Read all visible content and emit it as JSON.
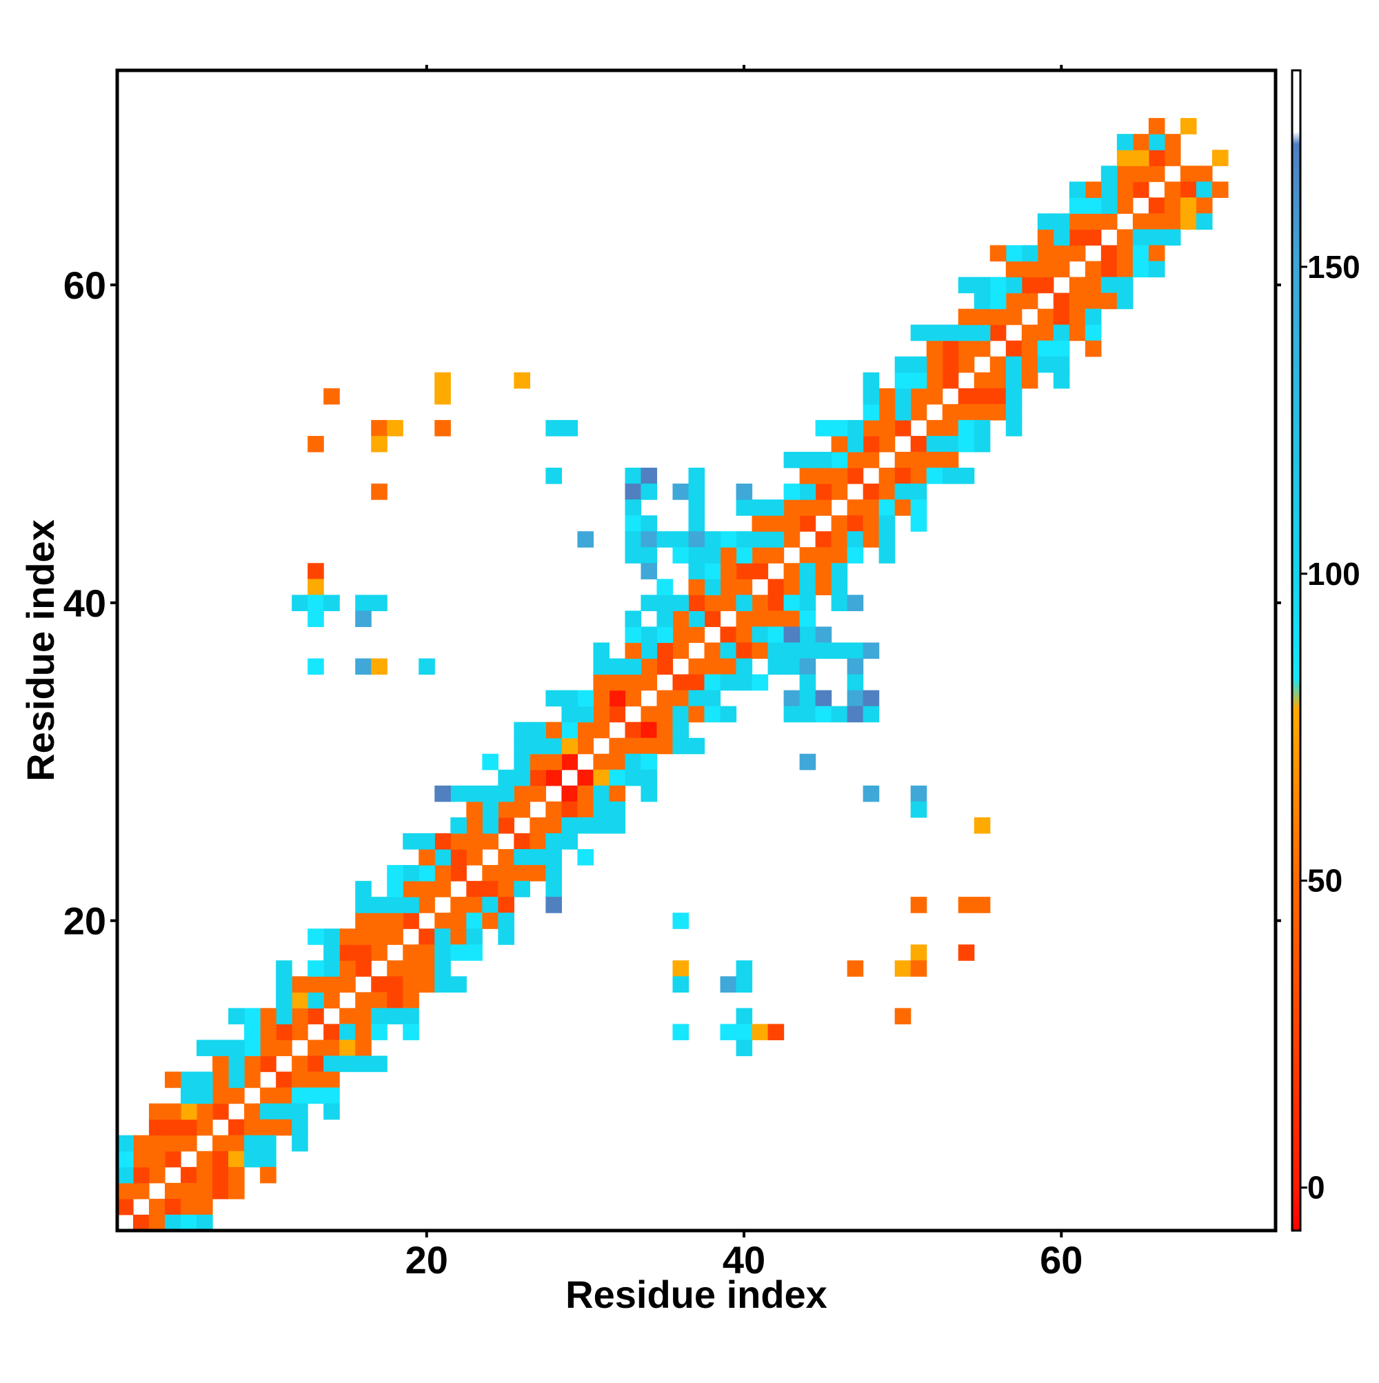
{
  "chart_data": {
    "type": "heatmap",
    "title": "",
    "xlabel": "Residue index",
    "ylabel": "Residue index",
    "xlim": [
      0.5,
      73.5
    ],
    "ylim": [
      0.5,
      73.5
    ],
    "x_ticks": [
      20,
      40,
      60
    ],
    "y_ticks": [
      20,
      40,
      60
    ],
    "colorbar": {
      "range": [
        -7,
        182
      ],
      "ticks": [
        0,
        50,
        100,
        150
      ],
      "stops": [
        {
          "value": -7,
          "color": "#ff0000"
        },
        {
          "value": 0,
          "color": "#ff1a00"
        },
        {
          "value": 25,
          "color": "#ff4400"
        },
        {
          "value": 50,
          "color": "#ff6a00"
        },
        {
          "value": 78,
          "color": "#ffaa00"
        },
        {
          "value": 83,
          "color": "#17e6ff"
        },
        {
          "value": 100,
          "color": "#15d6ee"
        },
        {
          "value": 150,
          "color": "#3fa8d8"
        },
        {
          "value": 170,
          "color": "#5080c0"
        },
        {
          "value": 172,
          "color": "#ffffff"
        },
        {
          "value": 182,
          "color": "#ffffff"
        }
      ]
    },
    "palette": {
      "R": "#ff1a00",
      "r": "#ff4400",
      "o": "#ff6a00",
      "y": "#ffaa00",
      "c": "#17e6ff",
      "t": "#15d6ee",
      "b": "#3fa8d8",
      "d": "#5080c0"
    },
    "diagonal_pattern": {
      "comment_free": true,
      "offsets": [
        {
          "d": 1,
          "start": 1,
          "cycle": "r o o r o o r o o r o o r o o r o o r o o r o o r o o R R o o r o o r o o r o o r o o r o o r o o r o o r o o r o o r o o r o o r o o"
        },
        {
          "d": 2,
          "start": 1,
          "cycle": "o r o o r o o t o o r o t o o r o o t o o r o t o o r o y o o R o o r o t o o r o t o o r o o r o t o o r o t o o r o o r o t o o r o y"
        },
        {
          "d": 3,
          "start": 1,
          "cycle": "t o o r y t o t c o t y o t r o o t o c t o o t t t o t c t o o t t c o r t o c t o o t o c t o o t c o r t o c t o o t o c t o y t"
        },
        {
          "d": 4,
          "start": 1,
          "cycle": "c o r o t t o t c o t o c t o o t c t o r t o t t t t o t c o t o t t t o c o t o t c o t o t c o c t o t o t c o t o t c o t y o o"
        }
      ],
      "extra_offsets": [
        {
          "d": 5,
          "start": 1,
          "cycle": "t . o . t . t . c . t . . t . t . c . t . . t . . t t . t . t . c . t . t . c . t . . t . c . t . t . t . . t . c . t . t . . t ."
        },
        {
          "d": 6,
          "start": 4,
          "cycle": "o . t . t . . t . c . . t . . t . . t . c . t . t . . t . t . c . . t . t . . t . c . . t . . t . . t . o . ."
        }
      ]
    },
    "offdiag_cells": [
      [
        14,
        53,
        "o"
      ],
      [
        13,
        50,
        "o"
      ],
      [
        17,
        51,
        "o"
      ],
      [
        17,
        50,
        "y"
      ],
      [
        18,
        51,
        "y"
      ],
      [
        21,
        54,
        "y"
      ],
      [
        21,
        53,
        "y"
      ],
      [
        21,
        51,
        "o"
      ],
      [
        26,
        54,
        "y"
      ],
      [
        17,
        47,
        "o"
      ],
      [
        28,
        51,
        "t"
      ],
      [
        29,
        51,
        "t"
      ],
      [
        28,
        48,
        "t"
      ],
      [
        30,
        44,
        "b"
      ],
      [
        13,
        42,
        "r"
      ],
      [
        13,
        41,
        "y"
      ],
      [
        12,
        40,
        "t"
      ],
      [
        13,
        40,
        "c"
      ],
      [
        14,
        40,
        "t"
      ],
      [
        13,
        39,
        "c"
      ],
      [
        16,
        40,
        "t"
      ],
      [
        17,
        40,
        "t"
      ],
      [
        16,
        39,
        "b"
      ],
      [
        13,
        36,
        "c"
      ],
      [
        16,
        36,
        "b"
      ],
      [
        17,
        36,
        "y"
      ],
      [
        20,
        36,
        "t"
      ],
      [
        33,
        48,
        "t"
      ],
      [
        34,
        48,
        "d"
      ],
      [
        33,
        47,
        "d"
      ],
      [
        34,
        47,
        "t"
      ],
      [
        36,
        47,
        "b"
      ],
      [
        37,
        47,
        "t"
      ],
      [
        37,
        48,
        "t"
      ],
      [
        40,
        47,
        "b"
      ],
      [
        33,
        46,
        "t"
      ],
      [
        37,
        46,
        "t"
      ],
      [
        33,
        45,
        "c"
      ],
      [
        34,
        45,
        "t"
      ],
      [
        37,
        45,
        "t"
      ],
      [
        33,
        44,
        "t"
      ],
      [
        34,
        44,
        "b"
      ],
      [
        35,
        44,
        "t"
      ],
      [
        36,
        44,
        "t"
      ],
      [
        37,
        44,
        "b"
      ],
      [
        38,
        44,
        "b"
      ],
      [
        33,
        43,
        "t"
      ],
      [
        34,
        43,
        "t"
      ],
      [
        36,
        43,
        "c"
      ],
      [
        37,
        43,
        "t"
      ],
      [
        38,
        43,
        "t"
      ],
      [
        34,
        42,
        "b"
      ],
      [
        37,
        42,
        "t"
      ],
      [
        38,
        42,
        "d"
      ],
      [
        39,
        42,
        "t"
      ],
      [
        35,
        41,
        "b"
      ],
      [
        38,
        41,
        "d"
      ],
      [
        39,
        41,
        "t"
      ],
      [
        34,
        40,
        "t"
      ],
      [
        35,
        40,
        "t"
      ],
      [
        39,
        40,
        "t"
      ],
      [
        40,
        40,
        "t"
      ],
      [
        43,
        40,
        "c"
      ],
      [
        47,
        40,
        "b"
      ],
      [
        41,
        39,
        "t"
      ],
      [
        42,
        39,
        "t"
      ],
      [
        43,
        39,
        "t"
      ],
      [
        41,
        38,
        "b"
      ],
      [
        42,
        38,
        "d"
      ],
      [
        43,
        38,
        "d"
      ],
      [
        44,
        38,
        "b"
      ],
      [
        45,
        38,
        "b"
      ],
      [
        43,
        37,
        "t"
      ],
      [
        44,
        37,
        "t"
      ],
      [
        45,
        37,
        "t"
      ],
      [
        46,
        37,
        "t"
      ],
      [
        47,
        37,
        "t"
      ],
      [
        48,
        37,
        "b"
      ],
      [
        42,
        36,
        "t"
      ],
      [
        43,
        36,
        "t"
      ],
      [
        44,
        36,
        "b"
      ],
      [
        47,
        36,
        "b"
      ],
      [
        44,
        35,
        "t"
      ],
      [
        47,
        35,
        "t"
      ],
      [
        43,
        34,
        "b"
      ],
      [
        44,
        34,
        "t"
      ],
      [
        45,
        34,
        "d"
      ],
      [
        47,
        34,
        "b"
      ],
      [
        48,
        34,
        "d"
      ],
      [
        43,
        33,
        "t"
      ],
      [
        44,
        33,
        "t"
      ],
      [
        45,
        33,
        "c"
      ],
      [
        46,
        33,
        "t"
      ],
      [
        47,
        33,
        "d"
      ],
      [
        48,
        33,
        "t"
      ],
      [
        44,
        30,
        "b"
      ],
      [
        21,
        28,
        "d"
      ],
      [
        28,
        21,
        "d"
      ],
      [
        48,
        28,
        "b"
      ],
      [
        51,
        28,
        "b"
      ],
      [
        51,
        27,
        "t"
      ],
      [
        55,
        26,
        "y"
      ],
      [
        36,
        20,
        "c"
      ],
      [
        51,
        21,
        "o"
      ],
      [
        54,
        21,
        "o"
      ],
      [
        55,
        21,
        "o"
      ],
      [
        51,
        18,
        "y"
      ],
      [
        54,
        18,
        "r"
      ],
      [
        47,
        17,
        "o"
      ],
      [
        50,
        17,
        "y"
      ],
      [
        51,
        17,
        "o"
      ],
      [
        36,
        17,
        "y"
      ],
      [
        40,
        17,
        "t"
      ],
      [
        36,
        16,
        "t"
      ],
      [
        39,
        16,
        "b"
      ],
      [
        40,
        16,
        "t"
      ],
      [
        50,
        14,
        "o"
      ],
      [
        40,
        14,
        "t"
      ],
      [
        36,
        13,
        "c"
      ],
      [
        39,
        13,
        "c"
      ],
      [
        40,
        13,
        "c"
      ],
      [
        41,
        13,
        "y"
      ],
      [
        42,
        13,
        "r"
      ],
      [
        40,
        12,
        "t"
      ]
    ]
  }
}
